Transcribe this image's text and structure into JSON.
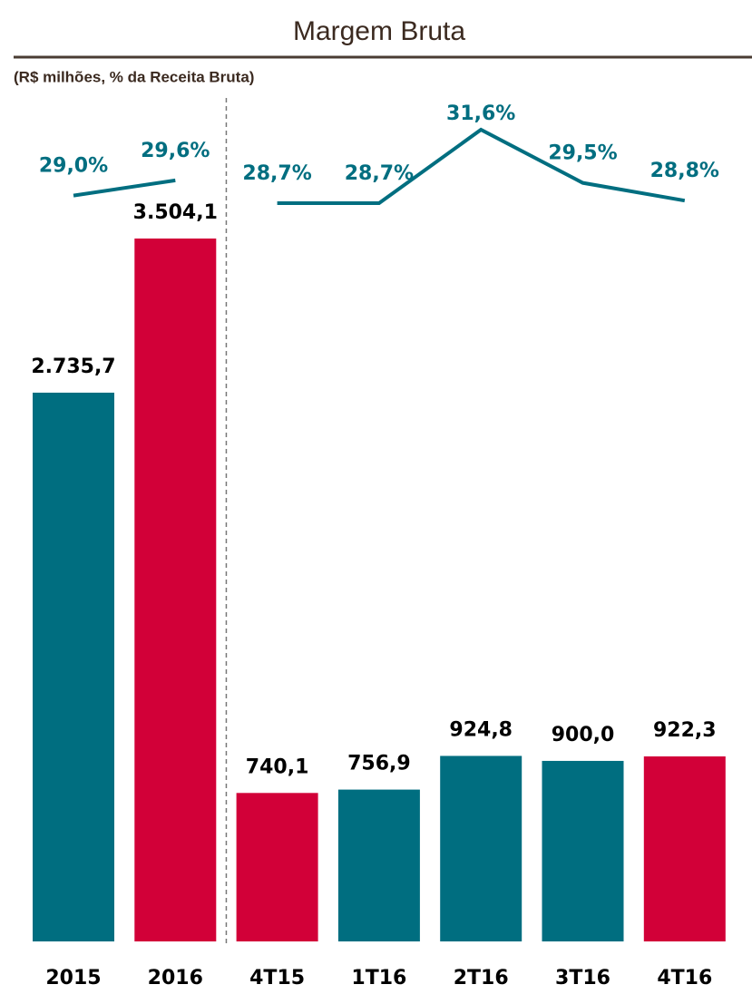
{
  "chart_data": {
    "type": "bar",
    "title": "Margem Bruta",
    "subtitle": "(R$ milhões, % da Receita Bruta)",
    "categories": [
      "2015",
      "2016",
      "4T15",
      "1T16",
      "2T16",
      "3T16",
      "4T16"
    ],
    "values": [
      2735.7,
      3504.1,
      740.1,
      756.9,
      924.8,
      900.0,
      922.3
    ],
    "value_labels": [
      "2.735,7",
      "3.504,1",
      "740,1",
      "756,9",
      "924,8",
      "900,0",
      "922,3"
    ],
    "colors": [
      "#006e80",
      "#d20038",
      "#d20038",
      "#006e80",
      "#006e80",
      "#006e80",
      "#d20038"
    ],
    "lines": [
      {
        "color": "#006e80",
        "values": [
          29.0,
          29.6,
          null,
          null,
          null,
          null,
          null
        ],
        "value_labels": [
          "29,0%",
          "29,6%",
          null,
          null,
          null,
          null,
          null
        ]
      },
      {
        "color": "#006e80",
        "values": [
          null,
          null,
          28.7,
          28.7,
          31.6,
          29.5,
          28.8
        ],
        "value_labels": [
          null,
          null,
          "28,7%",
          "28,7%",
          "31,6%",
          "29,5%",
          "28,8%"
        ]
      }
    ]
  }
}
